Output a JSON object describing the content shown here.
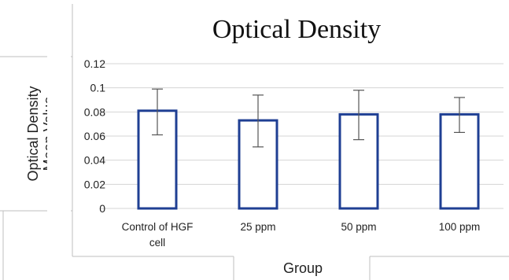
{
  "chart_data": {
    "type": "bar",
    "title": "Optical Density",
    "xlabel": "Group",
    "ylabel_lines": [
      "Optical Density",
      "Mean Value"
    ],
    "categories": [
      [
        "Control of HGF",
        "cell"
      ],
      [
        "25 ppm"
      ],
      [
        "50 ppm"
      ],
      [
        "100 ppm"
      ]
    ],
    "values": [
      0.081,
      0.073,
      0.078,
      0.078
    ],
    "error_low": [
      0.061,
      0.051,
      0.057,
      0.063
    ],
    "error_high": [
      0.099,
      0.094,
      0.098,
      0.092
    ],
    "y_ticks": [
      "0",
      "0.02",
      "0.04",
      "0.06",
      "0.08",
      "0.1",
      "0.12"
    ],
    "ylim": [
      0,
      0.12
    ],
    "grid": true,
    "legend": "none",
    "colors": {
      "bar_stroke": "#1f3f93",
      "grid": "#d4d4d4",
      "error_bar": "#555555",
      "border": "#bfbfbf"
    }
  }
}
